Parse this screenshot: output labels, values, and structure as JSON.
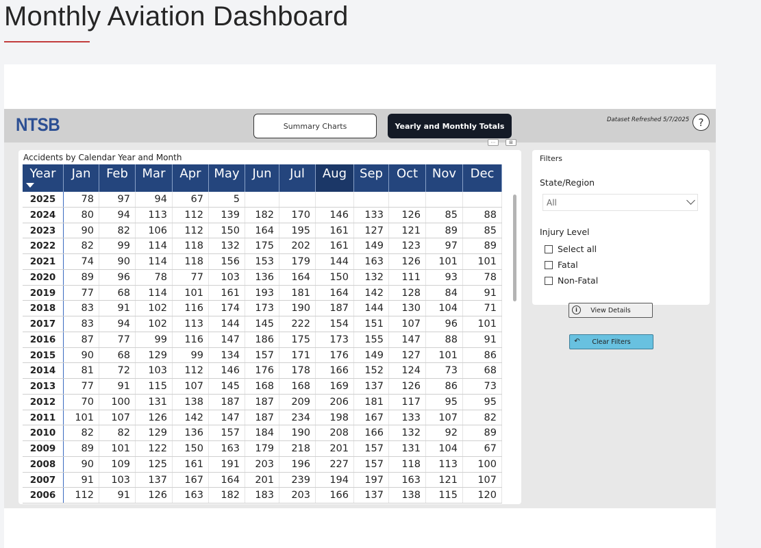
{
  "page": {
    "title": "Monthly Aviation Dashboard"
  },
  "topbar": {
    "logo": "NTSB",
    "summary_button": "Summary Charts",
    "yearly_button": "Yearly and Monthly Totals",
    "refreshed": "Dataset Refreshed 5/7/2025",
    "help": "?"
  },
  "table": {
    "title": "Accidents by Calendar Year and Month",
    "headers": [
      "Year",
      "Jan",
      "Feb",
      "Mar",
      "Apr",
      "May",
      "Jun",
      "Jul",
      "Aug",
      "Sep",
      "Oct",
      "Nov",
      "Dec"
    ],
    "rows": [
      [
        "2025",
        "78",
        "97",
        "94",
        "67",
        "5",
        "",
        "",
        "",
        "",
        "",
        "",
        ""
      ],
      [
        "2024",
        "80",
        "94",
        "113",
        "112",
        "139",
        "182",
        "170",
        "146",
        "133",
        "126",
        "85",
        "88"
      ],
      [
        "2023",
        "90",
        "82",
        "106",
        "112",
        "150",
        "164",
        "195",
        "161",
        "127",
        "121",
        "89",
        "85"
      ],
      [
        "2022",
        "82",
        "99",
        "114",
        "118",
        "132",
        "175",
        "202",
        "161",
        "149",
        "123",
        "97",
        "89"
      ],
      [
        "2021",
        "74",
        "90",
        "114",
        "118",
        "156",
        "153",
        "179",
        "144",
        "163",
        "126",
        "101",
        "101"
      ],
      [
        "2020",
        "89",
        "96",
        "78",
        "77",
        "103",
        "136",
        "164",
        "150",
        "132",
        "111",
        "93",
        "78"
      ],
      [
        "2019",
        "77",
        "68",
        "114",
        "101",
        "161",
        "193",
        "181",
        "164",
        "142",
        "128",
        "84",
        "91"
      ],
      [
        "2018",
        "83",
        "91",
        "102",
        "116",
        "174",
        "173",
        "190",
        "187",
        "144",
        "130",
        "104",
        "71"
      ],
      [
        "2017",
        "83",
        "94",
        "102",
        "113",
        "144",
        "145",
        "222",
        "154",
        "151",
        "107",
        "96",
        "101"
      ],
      [
        "2016",
        "87",
        "77",
        "99",
        "116",
        "147",
        "186",
        "175",
        "173",
        "155",
        "147",
        "88",
        "91"
      ],
      [
        "2015",
        "90",
        "68",
        "129",
        "99",
        "134",
        "157",
        "171",
        "176",
        "149",
        "127",
        "101",
        "86"
      ],
      [
        "2014",
        "81",
        "72",
        "103",
        "112",
        "146",
        "176",
        "178",
        "166",
        "152",
        "124",
        "73",
        "68"
      ],
      [
        "2013",
        "77",
        "91",
        "115",
        "107",
        "145",
        "168",
        "168",
        "169",
        "137",
        "126",
        "86",
        "73"
      ],
      [
        "2012",
        "70",
        "100",
        "131",
        "138",
        "187",
        "187",
        "209",
        "206",
        "181",
        "117",
        "95",
        "95"
      ],
      [
        "2011",
        "101",
        "107",
        "126",
        "142",
        "147",
        "187",
        "234",
        "198",
        "167",
        "133",
        "107",
        "82"
      ],
      [
        "2010",
        "82",
        "82",
        "129",
        "136",
        "157",
        "184",
        "190",
        "208",
        "166",
        "132",
        "92",
        "89"
      ],
      [
        "2009",
        "89",
        "101",
        "122",
        "150",
        "163",
        "179",
        "218",
        "201",
        "157",
        "131",
        "104",
        "67"
      ],
      [
        "2008",
        "90",
        "109",
        "125",
        "161",
        "191",
        "203",
        "196",
        "227",
        "157",
        "118",
        "113",
        "100"
      ],
      [
        "2007",
        "91",
        "103",
        "137",
        "167",
        "164",
        "201",
        "239",
        "194",
        "197",
        "163",
        "121",
        "107"
      ],
      [
        "2006",
        "112",
        "91",
        "126",
        "163",
        "182",
        "183",
        "203",
        "166",
        "137",
        "138",
        "115",
        "120"
      ]
    ]
  },
  "filters": {
    "title": "Filters",
    "state_label": "State/Region",
    "state_value": "All",
    "injury_label": "Injury Level",
    "options": [
      "Select all",
      "Fatal",
      "Non-Fatal"
    ]
  },
  "buttons": {
    "view_details": "View Details",
    "clear_filters": "Clear Filters"
  }
}
